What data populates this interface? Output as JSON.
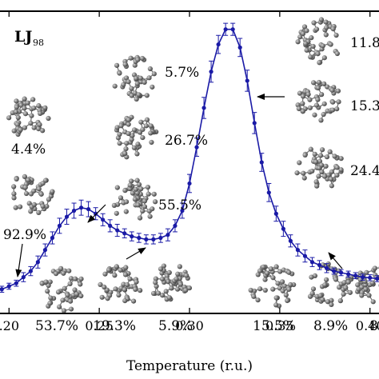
{
  "chart_data": {
    "type": "line",
    "title": "",
    "panel_label": {
      "main": "LJ",
      "sub": "98"
    },
    "xlabel": "Temperature (r.u.)",
    "ylabel": "",
    "xlim": [
      0.195,
      0.405
    ],
    "ylim": [
      0,
      1
    ],
    "grid": false,
    "xticks": [
      {
        "value": 0.2,
        "label": ".20"
      },
      {
        "value": 0.25,
        "label": "0.25"
      },
      {
        "value": 0.3,
        "label": "0.30"
      },
      {
        "value": 0.35,
        "label": "0.35"
      },
      {
        "value": 0.4,
        "label": "0.40"
      }
    ],
    "series_color": "#1a1aa6",
    "series": [
      {
        "x": [
          0.196,
          0.2,
          0.204,
          0.208,
          0.212,
          0.216,
          0.22,
          0.224,
          0.228,
          0.232,
          0.236,
          0.24,
          0.244,
          0.248,
          0.252,
          0.256,
          0.26,
          0.264,
          0.268,
          0.272,
          0.276,
          0.28,
          0.284,
          0.288,
          0.292,
          0.296,
          0.3,
          0.304,
          0.308,
          0.312,
          0.316,
          0.32,
          0.324,
          0.328,
          0.332,
          0.336,
          0.34,
          0.344,
          0.348,
          0.352,
          0.356,
          0.36,
          0.364,
          0.368,
          0.372,
          0.376,
          0.38,
          0.384,
          0.388,
          0.392,
          0.396,
          0.4,
          0.404
        ],
        "y": [
          0.08,
          0.09,
          0.1,
          0.12,
          0.14,
          0.17,
          0.21,
          0.25,
          0.29,
          0.32,
          0.34,
          0.35,
          0.345,
          0.33,
          0.31,
          0.29,
          0.275,
          0.265,
          0.255,
          0.25,
          0.245,
          0.245,
          0.25,
          0.26,
          0.29,
          0.34,
          0.43,
          0.55,
          0.68,
          0.8,
          0.89,
          0.94,
          0.94,
          0.88,
          0.77,
          0.63,
          0.5,
          0.4,
          0.33,
          0.28,
          0.24,
          0.21,
          0.19,
          0.17,
          0.16,
          0.15,
          0.14,
          0.135,
          0.13,
          0.125,
          0.12,
          0.118,
          0.115
        ],
        "yerr": [
          0.01,
          0.01,
          0.01,
          0.015,
          0.015,
          0.02,
          0.02,
          0.02,
          0.025,
          0.025,
          0.025,
          0.025,
          0.025,
          0.02,
          0.02,
          0.02,
          0.02,
          0.015,
          0.015,
          0.015,
          0.015,
          0.015,
          0.015,
          0.02,
          0.02,
          0.025,
          0.03,
          0.03,
          0.035,
          0.035,
          0.03,
          0.02,
          0.02,
          0.03,
          0.035,
          0.035,
          0.03,
          0.03,
          0.025,
          0.025,
          0.02,
          0.02,
          0.02,
          0.015,
          0.015,
          0.015,
          0.01,
          0.01,
          0.01,
          0.01,
          0.01,
          0.01,
          0.01
        ]
      }
    ],
    "annotations": [
      {
        "label": "4.4%"
      },
      {
        "label": "92.9%"
      },
      {
        "label": "5.7%"
      },
      {
        "label": "26.7%"
      },
      {
        "label": "55.5%"
      },
      {
        "label": "11.8"
      },
      {
        "label": "15.3"
      },
      {
        "label": "24.4"
      },
      {
        "label": "53.7%"
      },
      {
        "label": "19.3%"
      },
      {
        "label": "5.9%"
      },
      {
        "label": "15.5%"
      },
      {
        "label": "8.9%"
      },
      {
        "label": "8"
      }
    ]
  }
}
